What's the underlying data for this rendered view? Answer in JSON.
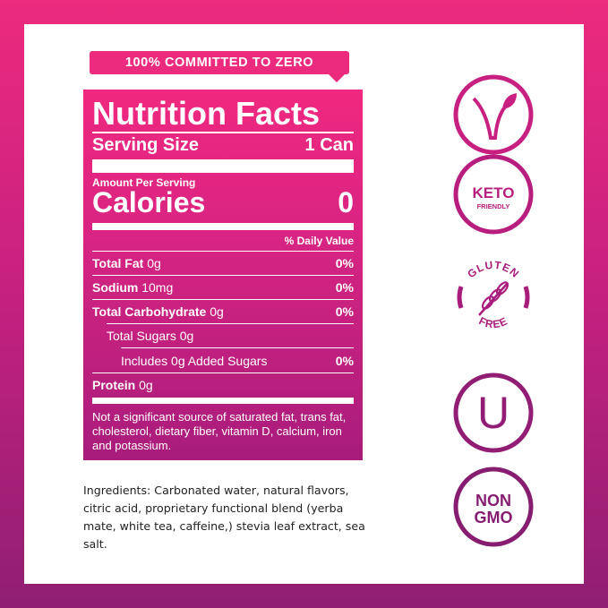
{
  "banner": "100% COMMITTED TO ZERO",
  "nutrition": {
    "title": "Nutrition Facts",
    "serving_label": "Serving Size",
    "serving_value": "1 Can",
    "amount_per_serving": "Amount Per Serving",
    "calories_label": "Calories",
    "calories_value": "0",
    "daily_value_header": "% Daily Value",
    "rows": [
      {
        "label": "Total Fat",
        "amount": "0g",
        "dv": "0%"
      },
      {
        "label": "Sodium",
        "amount": "10mg",
        "dv": "0%"
      },
      {
        "label": "Total Carbohydrate",
        "amount": "0g",
        "dv": "0%"
      },
      {
        "label": "Total Sugars",
        "amount": "0g",
        "dv": ""
      },
      {
        "label": "Includes 0g Added Sugars",
        "amount": "",
        "dv": "0%"
      },
      {
        "label": "Protein",
        "amount": "0g",
        "dv": ""
      }
    ],
    "footnote": "Not a significant source of saturated fat, trans fat, cholesterol, dietary fiber, vitamin D, calcium, iron and potassium."
  },
  "ingredients": "Ingredients: Carbonated water, natural flavors, citric acid, proprietary functional blend (yerba mate, white tea, caffeine,) stevia leaf extract, sea salt.",
  "badges": {
    "keto": "KETO",
    "keto_sub": "FRIENDLY",
    "gluten_top": "GLUTEN",
    "gluten_bottom": "FREE",
    "kosher": "U",
    "non": "NON",
    "gmo": "GMO"
  },
  "colors": {
    "pink": "#ec2a7e",
    "purple": "#8f1f72"
  }
}
